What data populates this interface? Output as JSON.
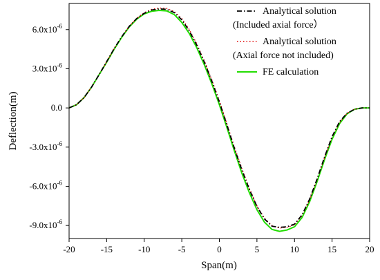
{
  "chart_data": {
    "type": "line",
    "xlabel": "Span(m)",
    "ylabel": "Deflection(m)",
    "xlim": [
      -20,
      20
    ],
    "ylim": [
      -1e-05,
      8e-06
    ],
    "x_ticks": [
      -20,
      -15,
      -10,
      -5,
      0,
      5,
      10,
      15,
      20
    ],
    "y_ticks": [
      {
        "value": 6e-06,
        "label": "6.0x10-6"
      },
      {
        "value": 3e-06,
        "label": "3.0x10-6"
      },
      {
        "value": 0,
        "label": "0.0"
      },
      {
        "value": -3e-06,
        "label": "-3.0x10-6"
      },
      {
        "value": -6e-06,
        "label": "-6.0x10-6"
      },
      {
        "value": -9e-06,
        "label": "-9.0x10-6"
      }
    ],
    "grid": false,
    "legend_position": "top-right",
    "series": [
      {
        "name": "Analytical solution (Included axial force）",
        "legend_lines": [
          "Analytical solution",
          "(Included axial force）"
        ],
        "color": "#000000",
        "style": "dash-dot",
        "x": [
          -20,
          -19,
          -18,
          -17,
          -16,
          -15,
          -14,
          -13,
          -12,
          -11,
          -10,
          -9,
          -8,
          -7,
          -6,
          -5,
          -4,
          -3,
          -2,
          -1,
          0,
          1,
          2,
          3,
          4,
          5,
          6,
          7,
          8,
          9,
          10,
          11,
          12,
          13,
          14,
          15,
          16,
          17,
          18,
          19,
          20
        ],
        "y": [
          0,
          2.5e-07,
          8e-07,
          1.6e-06,
          2.55e-06,
          3.55e-06,
          4.55e-06,
          5.45e-06,
          6.25e-06,
          6.85e-06,
          7.25e-06,
          7.5e-06,
          7.58e-06,
          7.55e-06,
          7.3e-06,
          6.75e-06,
          5.9e-06,
          4.8e-06,
          3.5e-06,
          2.05e-06,
          4.5e-07,
          -1.3e-06,
          -3.1e-06,
          -4.75e-06,
          -6.25e-06,
          -7.55e-06,
          -8.5e-06,
          -9.05e-06,
          -9.15e-06,
          -9.1e-06,
          -8.9e-06,
          -8.2e-06,
          -7e-06,
          -5.45e-06,
          -3.75e-06,
          -2.2e-06,
          -1.05e-06,
          -4e-07,
          -1e-07,
          0,
          0
        ]
      },
      {
        "name": "Analytical solution (Axial force not included)",
        "legend_lines": [
          "Analytical solution",
          "(Axial force not included)"
        ],
        "color": "#e00000",
        "style": "dotted",
        "x": [
          -20,
          -19,
          -18,
          -17,
          -16,
          -15,
          -14,
          -13,
          -12,
          -11,
          -10,
          -9,
          -8,
          -7,
          -6,
          -5,
          -4,
          -3,
          -2,
          -1,
          0,
          1,
          2,
          3,
          4,
          5,
          6,
          7,
          8,
          9,
          10,
          11,
          12,
          13,
          14,
          15,
          16,
          17,
          18,
          19,
          20
        ],
        "y": [
          0,
          2.5e-07,
          8e-07,
          1.6e-06,
          2.55e-06,
          3.55e-06,
          4.55e-06,
          5.45e-06,
          6.25e-06,
          6.85e-06,
          7.3e-06,
          7.55e-06,
          7.65e-06,
          7.62e-06,
          7.38e-06,
          6.85e-06,
          6e-06,
          4.9e-06,
          3.6e-06,
          2.15e-06,
          5.5e-07,
          -1.2e-06,
          -3e-06,
          -4.65e-06,
          -6.15e-06,
          -7.5e-06,
          -8.45e-06,
          -9e-06,
          -9.2e-06,
          -9.15e-06,
          -8.95e-06,
          -8.25e-06,
          -7.05e-06,
          -5.5e-06,
          -3.8e-06,
          -2.25e-06,
          -1.1e-06,
          -4e-07,
          -1e-07,
          0,
          0
        ]
      },
      {
        "name": "FE calculation",
        "legend_lines": [
          "FE calculation"
        ],
        "color": "#22dd00",
        "style": "solid",
        "x": [
          -20,
          -19,
          -18,
          -17,
          -16,
          -15,
          -14,
          -13,
          -12,
          -11,
          -10,
          -9,
          -8,
          -7,
          -6,
          -5,
          -4,
          -3,
          -2,
          -1,
          0,
          1,
          2,
          3,
          4,
          5,
          6,
          7,
          8,
          9,
          10,
          11,
          12,
          13,
          14,
          15,
          16,
          17,
          18,
          19,
          20
        ],
        "y": [
          0,
          2.5e-07,
          8e-07,
          1.6e-06,
          2.55e-06,
          3.5e-06,
          4.5e-06,
          5.4e-06,
          6.2e-06,
          6.8e-06,
          7.2e-06,
          7.4e-06,
          7.47e-06,
          7.43e-06,
          7.15e-06,
          6.55e-06,
          5.7e-06,
          4.6e-06,
          3.3e-06,
          1.85e-06,
          2.5e-07,
          -1.5e-06,
          -3.3e-06,
          -5e-06,
          -6.5e-06,
          -7.8e-06,
          -8.75e-06,
          -9.3e-06,
          -9.45e-06,
          -9.35e-06,
          -9.1e-06,
          -8.4e-06,
          -7.2e-06,
          -5.65e-06,
          -3.95e-06,
          -2.4e-06,
          -1.2e-06,
          -4.5e-07,
          -1e-07,
          0,
          0
        ]
      }
    ]
  }
}
